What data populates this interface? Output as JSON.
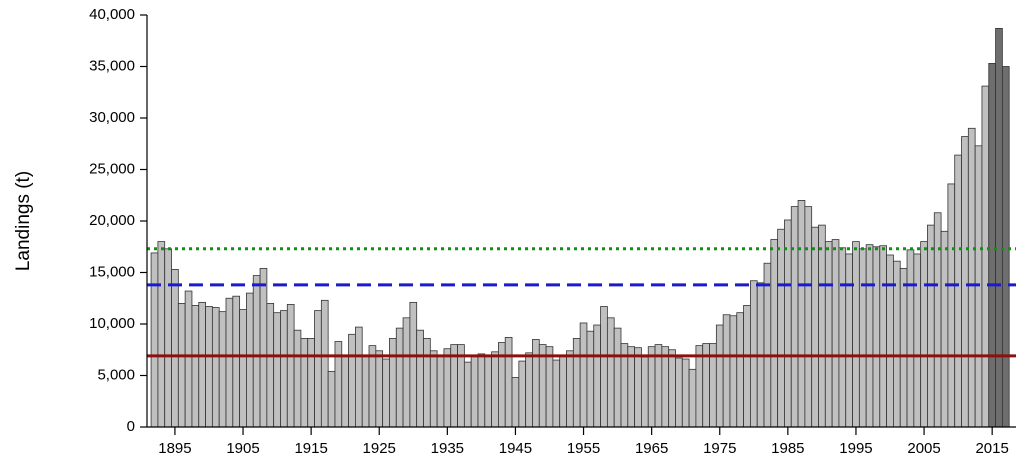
{
  "chart_data": {
    "type": "bar",
    "y_label": "Landings (t)",
    "x": [
      1892,
      1893,
      1894,
      1895,
      1896,
      1897,
      1898,
      1899,
      1900,
      1901,
      1902,
      1903,
      1904,
      1905,
      1906,
      1907,
      1908,
      1909,
      1910,
      1911,
      1912,
      1913,
      1914,
      1915,
      1916,
      1917,
      1918,
      1919,
      1920,
      1921,
      1922,
      1923,
      1924,
      1925,
      1926,
      1927,
      1928,
      1929,
      1930,
      1931,
      1932,
      1933,
      1934,
      1935,
      1936,
      1937,
      1938,
      1939,
      1940,
      1941,
      1942,
      1943,
      1944,
      1945,
      1946,
      1947,
      1948,
      1949,
      1950,
      1951,
      1952,
      1953,
      1954,
      1955,
      1956,
      1957,
      1958,
      1959,
      1960,
      1961,
      1962,
      1963,
      1964,
      1965,
      1966,
      1967,
      1968,
      1969,
      1970,
      1971,
      1972,
      1973,
      1974,
      1975,
      1976,
      1977,
      1978,
      1979,
      1980,
      1981,
      1982,
      1983,
      1984,
      1985,
      1986,
      1987,
      1988,
      1989,
      1990,
      1991,
      1992,
      1993,
      1994,
      1995,
      1996,
      1997,
      1998,
      1999,
      2000,
      2001,
      2002,
      2003,
      2004,
      2005,
      2006,
      2007,
      2008,
      2009,
      2010,
      2011,
      2012,
      2013,
      2014,
      2015,
      2016,
      2017
    ],
    "values": [
      16900,
      18000,
      17300,
      15300,
      12000,
      13200,
      11800,
      12100,
      11700,
      11600,
      11200,
      12500,
      12700,
      11400,
      13000,
      14700,
      15400,
      12000,
      11100,
      11300,
      11900,
      9400,
      8600,
      8600,
      11300,
      12300,
      5400,
      8300,
      7000,
      9000,
      9700,
      6900,
      7900,
      7400,
      6600,
      8600,
      9600,
      10600,
      12100,
      9400,
      8600,
      7400,
      7000,
      7600,
      8000,
      8000,
      6300,
      6900,
      7100,
      7000,
      7300,
      8200,
      8700,
      4800,
      6400,
      7200,
      8500,
      8000,
      7800,
      6500,
      7000,
      7400,
      8600,
      10100,
      9300,
      9900,
      11700,
      10600,
      9600,
      8100,
      7800,
      7700,
      6800,
      7800,
      8000,
      7800,
      7500,
      6700,
      6600,
      5600,
      7900,
      8100,
      8100,
      9900,
      10900,
      10800,
      11100,
      11800,
      14200,
      14000,
      15900,
      18200,
      19200,
      20100,
      21400,
      22000,
      21400,
      19400,
      19600,
      18000,
      18200,
      17400,
      16800,
      18000,
      17300,
      17700,
      17500,
      17600,
      16700,
      16100,
      15400,
      17200,
      16800,
      18000,
      19600,
      20800,
      19000,
      23600,
      26400,
      28200,
      29000,
      27300,
      33100,
      35300,
      38700,
      35000
    ],
    "color": "#c0c0c0",
    "highlight": {
      "from": 2015,
      "color": "#6e6e6e"
    },
    "hlines": [
      {
        "value": 6900,
        "color": "#8b1010",
        "style": "solid"
      },
      {
        "value": 13800,
        "color": "#1a1ad0",
        "style": "dashed"
      },
      {
        "value": 17300,
        "color": "#129012",
        "style": "dotted"
      }
    ],
    "xlim": [
      1890.9,
      2018.5
    ],
    "xticks": [
      1895,
      1905,
      1915,
      1925,
      1935,
      1945,
      1955,
      1965,
      1975,
      1985,
      1995,
      2005,
      2015
    ],
    "ylim": [
      0,
      40000
    ],
    "yticks": [
      0,
      {
        "value": 5000,
        "label": "5,000"
      },
      {
        "value": 10000,
        "label": "10,000"
      },
      {
        "value": 15000,
        "label": "15,000"
      },
      {
        "value": 20000,
        "label": "20,000"
      },
      {
        "value": 25000,
        "label": "25,000"
      },
      {
        "value": 30000,
        "label": "30,000"
      },
      {
        "value": 35000,
        "label": "35,000"
      },
      {
        "value": 40000,
        "label": "40,000"
      }
    ]
  }
}
